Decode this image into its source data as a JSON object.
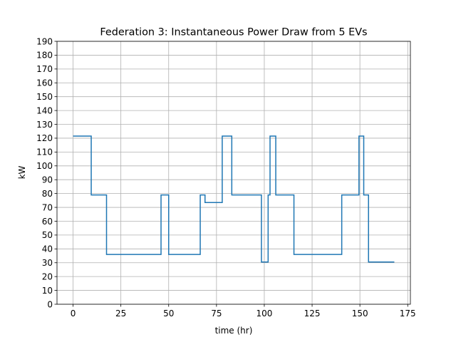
{
  "chart_data": {
    "type": "line",
    "title": "Federation 3: Instantaneous Power Draw from 5 EVs",
    "xlabel": "time (hr)",
    "ylabel": "kW",
    "xlim": [
      -8.4,
      176.4
    ],
    "ylim": [
      0,
      190
    ],
    "xticks": [
      0,
      25,
      50,
      75,
      100,
      125,
      150,
      175
    ],
    "yticks": [
      0,
      10,
      20,
      30,
      40,
      50,
      60,
      70,
      80,
      90,
      100,
      110,
      120,
      130,
      140,
      150,
      160,
      170,
      180,
      190
    ],
    "grid": true,
    "step": "post",
    "series": [
      {
        "color": "#1f77b4",
        "x": [
          0,
          9.5,
          17.5,
          46,
          50,
          66.5,
          69,
          78,
          83,
          98.5,
          102,
          103,
          106,
          115.5,
          140.5,
          149.5,
          152,
          154.5,
          168
        ],
        "y": [
          121.5,
          79,
          36,
          79,
          36,
          79,
          73.5,
          121.5,
          79,
          30.5,
          79,
          121.5,
          79,
          36,
          79,
          121.5,
          79,
          30.5,
          30.5
        ]
      }
    ]
  }
}
